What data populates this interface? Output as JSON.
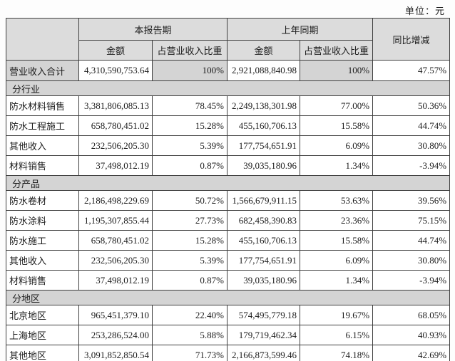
{
  "unit_label": "单位：元",
  "table": {
    "header": {
      "current_period": "本报告期",
      "prior_period": "上年同期",
      "yoy": "同比增减",
      "amount_cur": "金额",
      "proportion_cur": "占营业收入比重",
      "amount_prior": "金额",
      "proportion_prior": "占营业收入比重"
    },
    "total_row": {
      "label": "营业收入合计",
      "cur_amount": "4,310,590,753.64",
      "cur_pct": "100%",
      "prior_amount": "2,921,088,840.98",
      "prior_pct": "100%",
      "yoy": "47.57%"
    },
    "sections": [
      {
        "title": "分行业",
        "rows": [
          {
            "label": "防水材料销售",
            "cur_amount": "3,381,806,085.13",
            "cur_pct": "78.45%",
            "prior_amount": "2,249,138,301.98",
            "prior_pct": "77.00%",
            "yoy": "50.36%"
          },
          {
            "label": "防水工程施工",
            "cur_amount": "658,780,451.02",
            "cur_pct": "15.28%",
            "prior_amount": "455,160,706.13",
            "prior_pct": "15.58%",
            "yoy": "44.74%"
          },
          {
            "label": "其他收入",
            "cur_amount": "232,506,205.30",
            "cur_pct": "5.39%",
            "prior_amount": "177,754,651.91",
            "prior_pct": "6.09%",
            "yoy": "30.80%"
          },
          {
            "label": "材料销售",
            "cur_amount": "37,498,012.19",
            "cur_pct": "0.87%",
            "prior_amount": "39,035,180.96",
            "prior_pct": "1.34%",
            "yoy": "-3.94%"
          }
        ]
      },
      {
        "title": "分产品",
        "rows": [
          {
            "label": "防水卷材",
            "cur_amount": "2,186,498,229.69",
            "cur_pct": "50.72%",
            "prior_amount": "1,566,679,911.15",
            "prior_pct": "53.63%",
            "yoy": "39.56%"
          },
          {
            "label": "防水涂料",
            "cur_amount": "1,195,307,855.44",
            "cur_pct": "27.73%",
            "prior_amount": "682,458,390.83",
            "prior_pct": "23.36%",
            "yoy": "75.15%"
          },
          {
            "label": "防水施工",
            "cur_amount": "658,780,451.02",
            "cur_pct": "15.28%",
            "prior_amount": "455,160,706.13",
            "prior_pct": "15.58%",
            "yoy": "44.74%"
          },
          {
            "label": "其他收入",
            "cur_amount": "232,506,205.30",
            "cur_pct": "5.39%",
            "prior_amount": "177,754,651.91",
            "prior_pct": "6.09%",
            "yoy": "30.80%"
          },
          {
            "label": "材料销售",
            "cur_amount": "37,498,012.19",
            "cur_pct": "0.87%",
            "prior_amount": "39,035,180.96",
            "prior_pct": "1.34%",
            "yoy": "-3.94%"
          }
        ]
      },
      {
        "title": "分地区",
        "rows": [
          {
            "label": "北京地区",
            "cur_amount": "965,451,379.10",
            "cur_pct": "22.40%",
            "prior_amount": "574,495,779.18",
            "prior_pct": "19.67%",
            "yoy": "68.05%"
          },
          {
            "label": "上海地区",
            "cur_amount": "253,286,524.00",
            "cur_pct": "5.88%",
            "prior_amount": "179,719,462.34",
            "prior_pct": "6.15%",
            "yoy": "40.93%"
          },
          {
            "label": "其他地区",
            "cur_amount": "3,091,852,850.54",
            "cur_pct": "71.73%",
            "prior_amount": "2,166,873,599.46",
            "prior_pct": "74.18%",
            "yoy": "42.69%"
          }
        ]
      }
    ]
  }
}
